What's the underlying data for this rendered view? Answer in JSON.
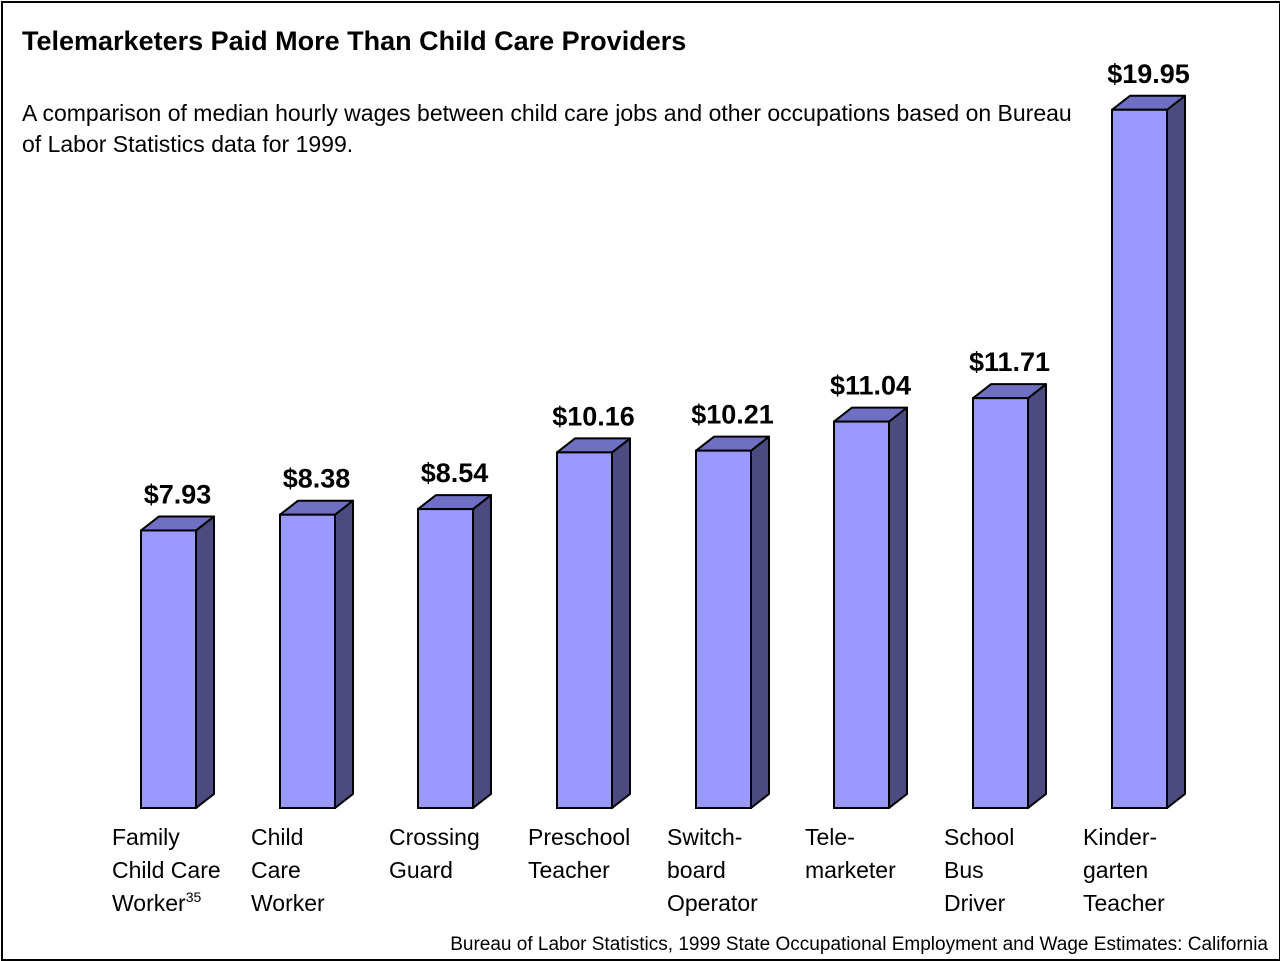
{
  "chart_data": {
    "type": "bar",
    "title": "Telemarketers Paid More Than Child Care Providers",
    "subtitle": "A comparison of median hourly wages between child care jobs and other occupations based on Bureau of Labor Statistics data for 1999.",
    "source": "Bureau of Labor Statistics, 1999 State Occupational Employment and Wage Estimates: California",
    "categories": [
      "Family Child Care Worker",
      "Child Care Worker",
      "Crossing Guard",
      "Preschool Teacher",
      "Switchboard Operator",
      "Telemarketer",
      "School Bus Driver",
      "Kindergarten Teacher"
    ],
    "category_lines": [
      [
        "Family",
        "Child Care",
        "Worker"
      ],
      [
        "Child",
        "Care",
        "Worker"
      ],
      [
        "Crossing",
        "Guard"
      ],
      [
        "Preschool",
        "Teacher"
      ],
      [
        "Switch-",
        "board",
        "Operator"
      ],
      [
        "Tele-",
        "marketer"
      ],
      [
        "School",
        "Bus",
        "Driver"
      ],
      [
        "Kinder-",
        "garten",
        "Teacher"
      ]
    ],
    "footnote_marker": "35",
    "values": [
      7.93,
      8.38,
      8.54,
      10.16,
      10.21,
      11.04,
      11.71,
      19.95
    ],
    "value_labels": [
      "$7.93",
      "$8.38",
      "$8.54",
      "$10.16",
      "$10.21",
      "$11.04",
      "$11.71",
      "$19.95"
    ],
    "ylim": [
      0,
      20
    ],
    "xlabel": "",
    "ylabel": "",
    "grid": false,
    "colors": {
      "front": "#9999ff",
      "side": "#4b4b7f",
      "top": "#6f6fc4",
      "outline": "#000000"
    }
  }
}
